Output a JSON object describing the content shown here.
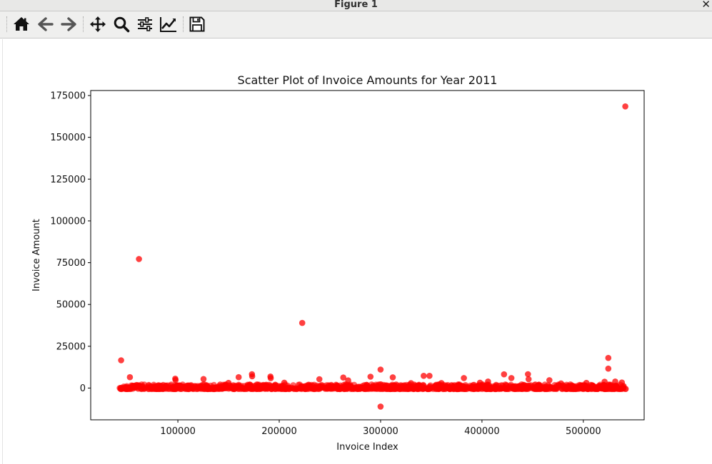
{
  "window": {
    "title": "Figure 1",
    "close_glyph": "✕"
  },
  "toolbar": {
    "buttons": [
      {
        "name": "home-button",
        "icon": "home-icon"
      },
      {
        "name": "back-button",
        "icon": "arrow-left-icon"
      },
      {
        "name": "forward-button",
        "icon": "arrow-right-icon"
      },
      {
        "name": "pan-button",
        "icon": "move-icon"
      },
      {
        "name": "zoom-button",
        "icon": "magnifier-icon"
      },
      {
        "name": "configure-subplots-button",
        "icon": "sliders-icon"
      },
      {
        "name": "edit-axis-button",
        "icon": "line-chart-icon"
      },
      {
        "name": "save-button",
        "icon": "floppy-disk-icon"
      }
    ]
  },
  "chart_data": {
    "type": "scatter",
    "title": "Scatter Plot of Invoice Amounts for Year 2011",
    "xlabel": "Invoice Index",
    "ylabel": "Invoice Amount",
    "xlim": [
      14000,
      560000
    ],
    "ylim": [
      -19000,
      178000
    ],
    "xticks": [
      100000,
      200000,
      300000,
      400000,
      500000
    ],
    "yticks": [
      0,
      25000,
      50000,
      75000,
      100000,
      125000,
      150000,
      175000
    ],
    "grid": false,
    "marker_color": "#ff0000",
    "marker_alpha": 0.6,
    "dense_band": {
      "x_range": [
        42480,
        541909
      ],
      "y_range": [
        -600,
        2200
      ]
    },
    "points": [
      {
        "x": 541431,
        "y": 168470
      },
      {
        "x": 61619,
        "y": 77183
      },
      {
        "x": 222681,
        "y": 38970
      },
      {
        "x": 44000,
        "y": 16600
      },
      {
        "x": 524602,
        "y": 18000
      },
      {
        "x": 524620,
        "y": 11600
      },
      {
        "x": 299983,
        "y": 11062
      },
      {
        "x": 299982,
        "y": -11062
      },
      {
        "x": 52700,
        "y": 6500
      },
      {
        "x": 97400,
        "y": 5600
      },
      {
        "x": 97700,
        "y": 4800
      },
      {
        "x": 125300,
        "y": 5400
      },
      {
        "x": 160000,
        "y": 6500
      },
      {
        "x": 173100,
        "y": 8300
      },
      {
        "x": 173300,
        "y": 7000
      },
      {
        "x": 191300,
        "y": 6900
      },
      {
        "x": 191600,
        "y": 5900
      },
      {
        "x": 239600,
        "y": 5300
      },
      {
        "x": 263200,
        "y": 6300
      },
      {
        "x": 268000,
        "y": 4600
      },
      {
        "x": 290000,
        "y": 6800
      },
      {
        "x": 312000,
        "y": 6400
      },
      {
        "x": 342500,
        "y": 7300
      },
      {
        "x": 348200,
        "y": 7300
      },
      {
        "x": 382200,
        "y": 6000
      },
      {
        "x": 406000,
        "y": 3900
      },
      {
        "x": 421800,
        "y": 8200
      },
      {
        "x": 429000,
        "y": 6000
      },
      {
        "x": 445400,
        "y": 8300
      },
      {
        "x": 446000,
        "y": 5300
      },
      {
        "x": 466500,
        "y": 4700
      },
      {
        "x": 521000,
        "y": 3800
      },
      {
        "x": 531500,
        "y": 3900
      },
      {
        "x": 538000,
        "y": 3300
      },
      {
        "x": 150000,
        "y": 3100
      },
      {
        "x": 205000,
        "y": 3200
      },
      {
        "x": 330000,
        "y": 2900
      },
      {
        "x": 360000,
        "y": 3000
      },
      {
        "x": 398000,
        "y": 3200
      },
      {
        "x": 478000,
        "y": 2800
      },
      {
        "x": 503000,
        "y": 3100
      }
    ]
  }
}
